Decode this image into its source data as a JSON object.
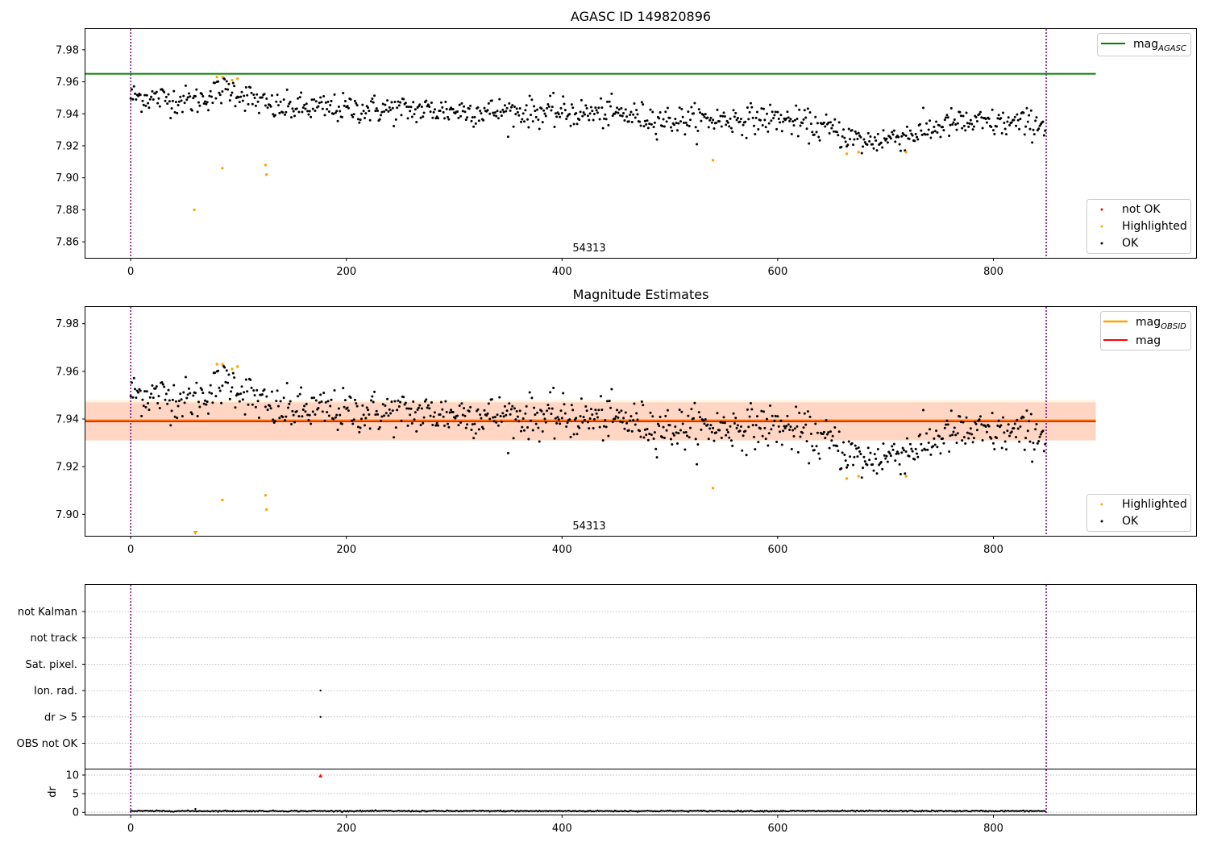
{
  "chart_data": [
    {
      "type": "scatter",
      "title": "AGASC ID 149820896",
      "xlabel": "",
      "ylabel": "",
      "xlim": [
        -42,
        988
      ],
      "ylim": [
        7.85,
        7.993
      ],
      "xticks": [
        0,
        200,
        400,
        600,
        800
      ],
      "yticks": [
        7.86,
        7.88,
        7.9,
        7.92,
        7.94,
        7.96,
        7.98
      ],
      "obsid_annotation": "54313",
      "obsid_annotation_x": 425,
      "obs_bounds": [
        0,
        849
      ],
      "reference_lines": [
        {
          "name": "mag",
          "subscript": "AGASC",
          "y": 7.965,
          "color": "#008000"
        }
      ],
      "highlighted_points": [
        [
          80,
          7.963
        ],
        [
          85,
          7.963
        ],
        [
          94,
          7.961
        ],
        [
          99,
          7.962
        ],
        [
          59,
          7.88
        ],
        [
          85,
          7.906
        ],
        [
          125,
          7.908
        ],
        [
          126,
          7.902
        ],
        [
          540,
          7.911
        ],
        [
          664,
          7.915
        ],
        [
          675,
          7.916
        ],
        [
          719,
          7.916
        ]
      ],
      "not_ok_points": [],
      "ok_series": {
        "n": 849,
        "segments": [
          [
            0,
            7.951
          ],
          [
            60,
            7.948
          ],
          [
            90,
            7.956
          ],
          [
            130,
            7.944
          ],
          [
            300,
            7.942
          ],
          [
            450,
            7.94
          ],
          [
            500,
            7.936
          ],
          [
            600,
            7.937
          ],
          [
            650,
            7.93
          ],
          [
            680,
            7.922
          ],
          [
            730,
            7.928
          ],
          [
            760,
            7.934
          ],
          [
            849,
            7.934
          ]
        ],
        "noise": 0.0045
      },
      "legend": {
        "position": "right",
        "entries": [
          {
            "label": "not OK",
            "color": "#ff0000"
          },
          {
            "label": "Highlighted",
            "color": "#ffa500"
          },
          {
            "label": "OK",
            "color": "#000000"
          }
        ]
      },
      "line_legend": {
        "position": "top-right",
        "entries": [
          {
            "label": "mag",
            "subscript": "AGASC",
            "color": "#008000"
          }
        ]
      },
      "grid": false
    },
    {
      "type": "scatter",
      "title": "Magnitude Estimates",
      "xlabel": "",
      "ylabel": "",
      "xlim": [
        -42,
        988
      ],
      "ylim": [
        7.891,
        7.987
      ],
      "xticks": [
        0,
        200,
        400,
        600,
        800
      ],
      "yticks": [
        7.9,
        7.92,
        7.94,
        7.96,
        7.98
      ],
      "obsid_annotation": "54313",
      "obsid_annotation_x": 425,
      "obs_bounds": [
        0,
        849
      ],
      "reference_lines": [
        {
          "name": "mag",
          "subscript": "OBSID",
          "y": 7.9395,
          "color": "#ffa500",
          "band": [
            7.931,
            7.948
          ]
        },
        {
          "name": "mag",
          "subscript": "",
          "y": 7.939,
          "color": "#ff0000",
          "band": [
            7.931,
            7.947
          ]
        }
      ],
      "highlighted_points": [
        [
          80,
          7.963
        ],
        [
          85,
          7.963
        ],
        [
          94,
          7.961
        ],
        [
          99,
          7.962
        ],
        [
          85,
          7.906
        ],
        [
          125,
          7.908
        ],
        [
          126,
          7.902
        ],
        [
          540,
          7.911
        ],
        [
          664,
          7.915
        ],
        [
          675,
          7.916
        ],
        [
          719,
          7.916
        ]
      ],
      "offscale_marker_x": 60,
      "ok_series": {
        "n": 849,
        "segments": [
          [
            0,
            7.951
          ],
          [
            60,
            7.948
          ],
          [
            90,
            7.956
          ],
          [
            130,
            7.944
          ],
          [
            300,
            7.942
          ],
          [
            450,
            7.94
          ],
          [
            500,
            7.936
          ],
          [
            600,
            7.937
          ],
          [
            650,
            7.93
          ],
          [
            680,
            7.922
          ],
          [
            730,
            7.928
          ],
          [
            760,
            7.934
          ],
          [
            849,
            7.934
          ]
        ],
        "noise": 0.0045
      },
      "legend": {
        "position": "right",
        "entries": [
          {
            "label": "Highlighted",
            "color": "#ffa500"
          },
          {
            "label": "OK",
            "color": "#000000"
          }
        ]
      },
      "line_legend": {
        "position": "top-right",
        "entries": [
          {
            "label": "mag",
            "subscript": "OBSID",
            "color": "#ffa500"
          },
          {
            "label": "mag",
            "subscript": "",
            "color": "#ff0000"
          }
        ]
      },
      "grid": false
    },
    {
      "type": "scatter",
      "title": "",
      "xlabel": "",
      "ylabel": "",
      "xlim": [
        -42,
        988
      ],
      "xticks": [
        0,
        200,
        400,
        600,
        800
      ],
      "flag_categories": [
        "not Kalman",
        "not track",
        "Sat. pixel.",
        "Ion. rad.",
        "dr > 5",
        "OBS not OK"
      ],
      "flag_points": [
        {
          "category": "Ion. rad.",
          "x": 176
        },
        {
          "category": "dr > 5",
          "x": 176
        }
      ],
      "obs_bounds": [
        0,
        849
      ],
      "grid": true
    },
    {
      "type": "scatter",
      "title": "",
      "xlabel": "",
      "ylabel": "dr",
      "xlim": [
        -42,
        988
      ],
      "ylim": [
        -0.6,
        11.5
      ],
      "xticks": [
        0,
        200,
        400,
        600,
        800
      ],
      "yticks": [
        0,
        5,
        10
      ],
      "highlight_point": {
        "x": 176,
        "y": 9.8,
        "color": "#ff0000"
      },
      "dr_baseline": 0.35,
      "obs_bounds": [
        0,
        849
      ],
      "grid": true
    }
  ],
  "colors": {
    "ok": "#000000",
    "highlighted": "#ffa500",
    "not_ok": "#ff0000",
    "obs_bound": "#800080",
    "band_red": "#ff0000",
    "band_orange": "#ffa500"
  }
}
